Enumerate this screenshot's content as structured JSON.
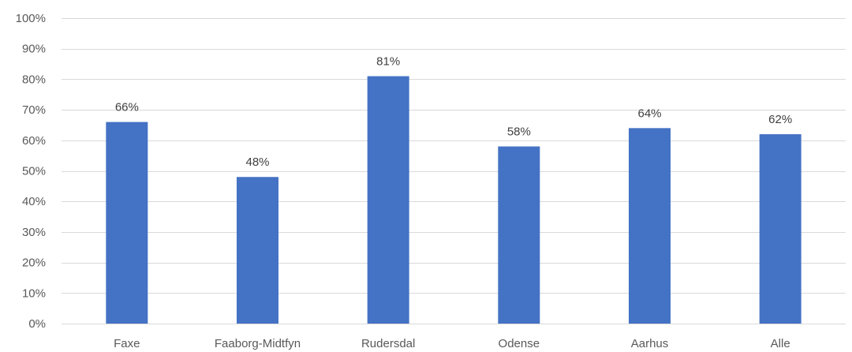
{
  "chart_data": {
    "type": "bar",
    "title": "",
    "xlabel": "",
    "ylabel": "",
    "categories": [
      "Faxe",
      "Faaborg-Midtfyn",
      "Rudersdal",
      "Odense",
      "Aarhus",
      "Alle"
    ],
    "values": [
      66,
      48,
      81,
      58,
      64,
      62
    ],
    "data_labels": [
      "66%",
      "48%",
      "81%",
      "58%",
      "64%",
      "62%"
    ],
    "ylim": [
      0,
      100
    ],
    "yticks": [
      0,
      10,
      20,
      30,
      40,
      50,
      60,
      70,
      80,
      90,
      100
    ],
    "ytick_labels": [
      "0%",
      "10%",
      "20%",
      "30%",
      "40%",
      "50%",
      "60%",
      "70%",
      "80%",
      "90%",
      "100%"
    ],
    "grid": true,
    "legend": "none",
    "colors": {
      "bar": "#4472c4",
      "grid": "#d9d9d9"
    }
  }
}
